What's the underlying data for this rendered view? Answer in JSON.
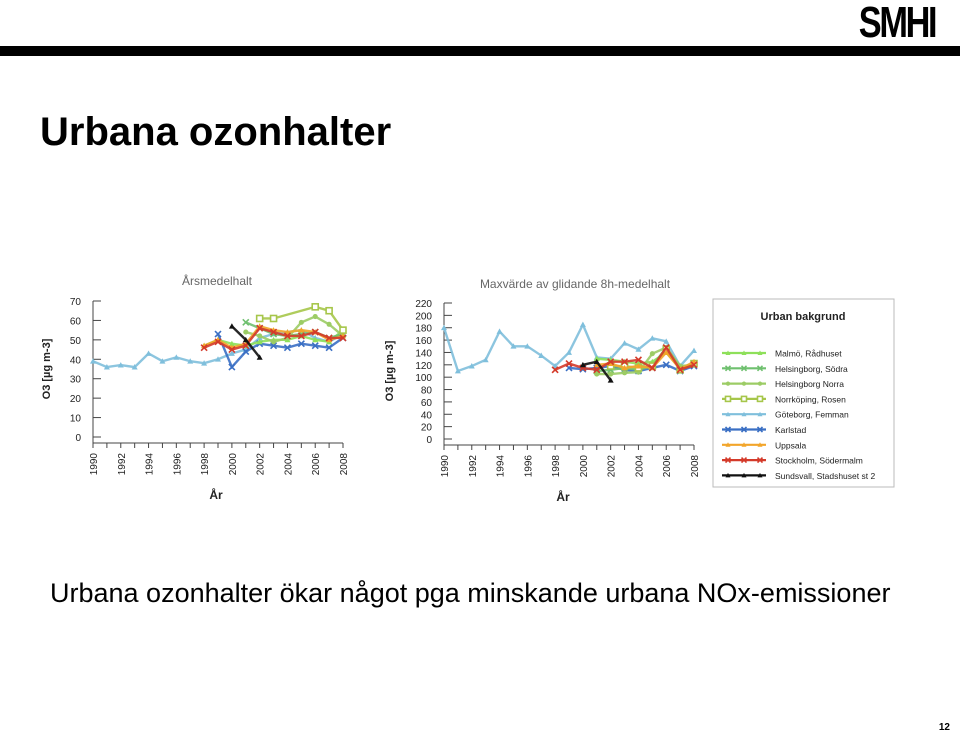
{
  "header": {
    "logo_text": "SMHI"
  },
  "slide": {
    "title": "Urbana ozonhalter",
    "subtitle": "Urbana ozonhalter ökar något pga minskande urbana NOx-emissioner",
    "page_number": "12"
  },
  "chart_data": [
    {
      "type": "line",
      "title": "Årsmedelhalt",
      "xlabel": "År",
      "ylabel": "O3 [µg m-3]",
      "ylim": [
        0,
        70
      ],
      "yticks": [
        "0",
        "10",
        "20",
        "30",
        "40",
        "50",
        "60",
        "70"
      ],
      "xlim": [
        1990,
        2008
      ],
      "xticks": [
        "1990",
        "1992",
        "1994",
        "1996",
        "1998",
        "2000",
        "2002",
        "2004",
        "2006",
        "2008"
      ],
      "grid": false,
      "series": [
        {
          "name": "Göteborg, Femman",
          "color": "#7fbfdc",
          "marker": "triangle",
          "x": [
            1990,
            1991,
            1992,
            1993,
            1994,
            1995,
            1996,
            1997,
            1998,
            1999,
            2000,
            2001,
            2002,
            2003,
            2004,
            2005,
            2006,
            2007,
            2008
          ],
          "y": [
            39,
            36,
            37,
            36,
            43,
            39,
            41,
            39,
            38,
            40,
            43,
            45,
            51,
            53,
            54,
            55,
            51,
            49,
            53
          ]
        },
        {
          "name": "Karlstad",
          "color": "#3a6fc4",
          "marker": "x",
          "x": [
            1999,
            2000,
            2001,
            2002,
            2003,
            2004,
            2005,
            2006,
            2007,
            2008
          ],
          "y": [
            53,
            36,
            44,
            48,
            47,
            46,
            48,
            47,
            46,
            51
          ]
        },
        {
          "name": "Malmö, Rådhuset",
          "color": "#8ee05a",
          "marker": "triangle",
          "x": [
            1998,
            1999,
            2000,
            2001,
            2002,
            2003,
            2004,
            2005,
            2006,
            2007,
            2008
          ],
          "y": [
            47,
            50,
            48,
            47,
            49,
            50,
            50,
            52,
            50,
            49,
            55
          ]
        },
        {
          "name": "Helsingborg, Södra",
          "color": "#6fc06f",
          "marker": "x",
          "x": [
            2001,
            2002,
            2003,
            2004,
            2005,
            2006,
            2007,
            2008
          ],
          "y": [
            59,
            56,
            53,
            52,
            53,
            54,
            51,
            53
          ]
        },
        {
          "name": "Helsingborg Norra",
          "color": "#9ccc65",
          "marker": "circle",
          "x": [
            2001,
            2002,
            2003,
            2004,
            2005,
            2006,
            2007,
            2008
          ],
          "y": [
            54,
            52,
            49,
            51,
            59,
            62,
            58,
            52
          ]
        },
        {
          "name": "Norrköping, Rosen",
          "color": "#a6c64a",
          "marker": "square",
          "x": [
            2002,
            2003,
            2006,
            2007,
            2008
          ],
          "y": [
            61,
            61,
            67,
            65,
            55
          ]
        },
        {
          "name": "Uppsala",
          "color": "#f2a52a",
          "marker": "triangle",
          "x": [
            1998,
            1999,
            2000,
            2001,
            2002,
            2003,
            2004,
            2005,
            2006,
            2007,
            2008
          ],
          "y": [
            47,
            50,
            46,
            48,
            57,
            55,
            54,
            55,
            54,
            50,
            52
          ]
        },
        {
          "name": "Stockholm, Södermalm",
          "color": "#d43a2a",
          "marker": "x",
          "x": [
            1998,
            1999,
            2000,
            2001,
            2002,
            2003,
            2004,
            2005,
            2006,
            2007,
            2008
          ],
          "y": [
            46,
            49,
            45,
            47,
            56,
            54,
            52,
            52,
            54,
            51,
            51
          ]
        },
        {
          "name": "Sundsvall, Stadshuset st 2",
          "color": "#111111",
          "marker": "triangle",
          "x": [
            2000,
            2001,
            2002
          ],
          "y": [
            57,
            50,
            41
          ]
        }
      ]
    },
    {
      "type": "line",
      "title": "Maxvärde av glidande 8h-medelhalt",
      "xlabel": "År",
      "ylabel": "O3 [µg m-3]",
      "ylim": [
        0,
        220
      ],
      "yticks": [
        "0",
        "20",
        "40",
        "60",
        "80",
        "100",
        "120",
        "140",
        "160",
        "180",
        "200",
        "220"
      ],
      "xlim": [
        1990,
        2008
      ],
      "xticks": [
        "1990",
        "1992",
        "1994",
        "1996",
        "1998",
        "2000",
        "2002",
        "2004",
        "2006",
        "2008"
      ],
      "grid": false,
      "series": [
        {
          "name": "Göteborg, Femman",
          "color": "#7fbfdc",
          "marker": "triangle",
          "x": [
            1990,
            1991,
            1992,
            1993,
            1994,
            1995,
            1996,
            1997,
            1998,
            1999,
            2000,
            2001,
            2002,
            2003,
            2004,
            2005,
            2006,
            2007,
            2008
          ],
          "y": [
            180,
            110,
            118,
            128,
            174,
            150,
            150,
            135,
            118,
            140,
            185,
            132,
            130,
            155,
            145,
            163,
            158,
            118,
            143
          ]
        },
        {
          "name": "Karlstad",
          "color": "#3a6fc4",
          "marker": "x",
          "x": [
            1999,
            2000,
            2001,
            2002,
            2003,
            2004,
            2005,
            2006,
            2007,
            2008
          ],
          "y": [
            115,
            113,
            115,
            118,
            112,
            110,
            115,
            120,
            110,
            118
          ]
        },
        {
          "name": "Malmö, Rådhuset",
          "color": "#8ee05a",
          "marker": "triangle",
          "x": [
            2001,
            2002,
            2003,
            2004,
            2005,
            2006,
            2007,
            2008
          ],
          "y": [
            130,
            128,
            125,
            122,
            125,
            140,
            115,
            120
          ]
        },
        {
          "name": "Helsingborg, Södra",
          "color": "#6fc06f",
          "marker": "x",
          "x": [
            2001,
            2002,
            2003,
            2004,
            2005,
            2006,
            2007,
            2008
          ],
          "y": [
            110,
            112,
            115,
            112,
            118,
            148,
            115,
            122
          ]
        },
        {
          "name": "Helsingborg Norra",
          "color": "#9ccc65",
          "marker": "circle",
          "x": [
            2001,
            2002,
            2003,
            2004,
            2005,
            2006,
            2007,
            2008
          ],
          "y": [
            105,
            105,
            107,
            108,
            138,
            148,
            118,
            120
          ]
        },
        {
          "name": "Norrköping, Rosen",
          "color": "#a6c64a",
          "marker": "square",
          "x": [
            2002,
            2003,
            2004,
            2005,
            2006,
            2007,
            2008
          ],
          "y": [
            118,
            118,
            115,
            118,
            145,
            112,
            122
          ]
        },
        {
          "name": "Uppsala",
          "color": "#f2a52a",
          "marker": "triangle",
          "x": [
            2001,
            2002,
            2003,
            2004,
            2005,
            2006,
            2007,
            2008
          ],
          "y": [
            120,
            122,
            115,
            118,
            115,
            140,
            113,
            125
          ]
        },
        {
          "name": "Stockholm, Södermalm",
          "color": "#d43a2a",
          "marker": "x",
          "x": [
            1998,
            1999,
            2000,
            2001,
            2002,
            2003,
            2004,
            2005,
            2006,
            2007,
            2008
          ],
          "y": [
            112,
            122,
            115,
            112,
            125,
            125,
            128,
            115,
            148,
            112,
            120
          ]
        },
        {
          "name": "Sundsvall, Stadshuset st 2",
          "color": "#111111",
          "marker": "triangle",
          "x": [
            2000,
            2001,
            2002
          ],
          "y": [
            120,
            125,
            95
          ]
        }
      ]
    }
  ],
  "legend": {
    "title": "Urban bakgrund",
    "placement": "right",
    "items": [
      {
        "label": "Malmö, Rådhuset",
        "color": "#8ee05a",
        "marker": "triangle"
      },
      {
        "label": "Helsingborg, Södra",
        "color": "#6fc06f",
        "marker": "x"
      },
      {
        "label": "Helsingborg Norra",
        "color": "#9ccc65",
        "marker": "circle"
      },
      {
        "label": "Norrköping, Rosen",
        "color": "#a6c64a",
        "marker": "square"
      },
      {
        "label": "Göteborg, Femman",
        "color": "#7fbfdc",
        "marker": "triangle"
      },
      {
        "label": "Karlstad",
        "color": "#3a6fc4",
        "marker": "x"
      },
      {
        "label": "Uppsala",
        "color": "#f2a52a",
        "marker": "triangle"
      },
      {
        "label": "Stockholm, Södermalm",
        "color": "#d43a2a",
        "marker": "x"
      },
      {
        "label": "Sundsvall, Stadshuset st 2",
        "color": "#111111",
        "marker": "triangle"
      }
    ]
  }
}
